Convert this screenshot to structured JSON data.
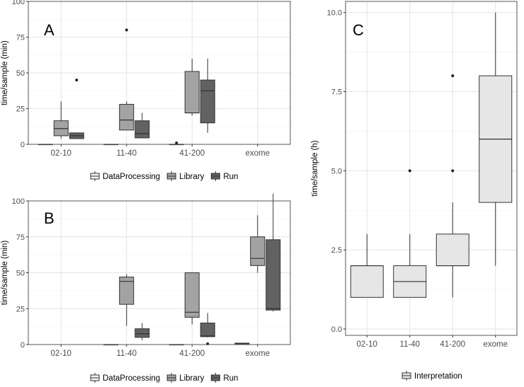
{
  "chart_data": [
    {
      "type": "box",
      "panel_label": "A",
      "ylabel": "time/sample (min)",
      "ylim": [
        0,
        100
      ],
      "yticks": [
        0,
        25,
        50,
        75,
        100
      ],
      "categories": [
        "02-10",
        "11-40",
        "41-200",
        "exome"
      ],
      "series": [
        {
          "name": "DataProcessing",
          "fill": "#f2f2f2",
          "boxes": [
            {
              "q1": 0,
              "median": 0,
              "q3": 0,
              "whisker_low": 0,
              "whisker_high": 0,
              "outliers": []
            },
            {
              "q1": 0,
              "median": 0,
              "q3": 0,
              "whisker_low": 0,
              "whisker_high": 0,
              "outliers": []
            },
            {
              "q1": 0,
              "median": 0,
              "q3": 0,
              "whisker_low": 0,
              "whisker_high": 0,
              "outliers": [
                1
              ]
            },
            null
          ]
        },
        {
          "name": "Library",
          "fill": "#a3a3a3",
          "boxes": [
            {
              "q1": 6,
              "median": 11,
              "q3": 16.5,
              "whisker_low": 4,
              "whisker_high": 30,
              "outliers": []
            },
            {
              "q1": 10,
              "median": 17,
              "q3": 28,
              "whisker_low": 10,
              "whisker_high": 30,
              "outliers": [
                80
              ]
            },
            {
              "q1": 22,
              "median": 22,
              "q3": 51,
              "whisker_low": 20,
              "whisker_high": 60,
              "outliers": []
            },
            null
          ]
        },
        {
          "name": "Run",
          "fill": "#626262",
          "boxes": [
            {
              "q1": 4,
              "median": 6,
              "q3": 8,
              "whisker_low": 4,
              "whisker_high": 8,
              "outliers": [
                45
              ]
            },
            {
              "q1": 4.5,
              "median": 7.5,
              "q3": 16.5,
              "whisker_low": 4.5,
              "whisker_high": 22,
              "outliers": []
            },
            {
              "q1": 15,
              "median": 37.5,
              "q3": 45,
              "whisker_low": 8,
              "whisker_high": 60,
              "outliers": []
            },
            null
          ]
        }
      ],
      "legend": {
        "position": "bottom"
      },
      "grid": true
    },
    {
      "type": "box",
      "panel_label": "B",
      "ylabel": "time/sample (min)",
      "ylim": [
        0,
        100
      ],
      "yticks": [
        0,
        25,
        50,
        75,
        100
      ],
      "categories": [
        "02-10",
        "11-40",
        "41-200",
        "exome"
      ],
      "series": [
        {
          "name": "DataProcessing",
          "fill": "#f2f2f2",
          "boxes": [
            null,
            {
              "q1": 0,
              "median": 0,
              "q3": 0,
              "whisker_low": 0,
              "whisker_high": 0,
              "outliers": []
            },
            {
              "q1": 0,
              "median": 0,
              "q3": 0,
              "whisker_low": 0,
              "whisker_high": 0,
              "outliers": []
            },
            {
              "q1": 0,
              "median": 0.5,
              "q3": 1,
              "whisker_low": 0,
              "whisker_high": 1,
              "outliers": []
            }
          ]
        },
        {
          "name": "Library",
          "fill": "#a3a3a3",
          "boxes": [
            null,
            {
              "q1": 28,
              "median": 44,
              "q3": 47,
              "whisker_low": 13,
              "whisker_high": 49,
              "outliers": []
            },
            {
              "q1": 19,
              "median": 22.5,
              "q3": 50,
              "whisker_low": 14,
              "whisker_high": 50,
              "outliers": []
            },
            {
              "q1": 55,
              "median": 60,
              "q3": 75,
              "whisker_low": 50,
              "whisker_high": 90,
              "outliers": []
            }
          ]
        },
        {
          "name": "Run",
          "fill": "#626262",
          "boxes": [
            null,
            {
              "q1": 5,
              "median": 7.5,
              "q3": 11,
              "whisker_low": 3,
              "whisker_high": 15,
              "outliers": []
            },
            {
              "q1": 5.5,
              "median": 6,
              "q3": 15,
              "whisker_low": 5,
              "whisker_high": 22,
              "outliers": [
                0.5
              ]
            },
            {
              "q1": 24,
              "median": 25,
              "q3": 73,
              "whisker_low": 23,
              "whisker_high": 105,
              "outliers": []
            }
          ]
        }
      ],
      "legend": {
        "position": "bottom"
      },
      "grid": true
    },
    {
      "type": "box",
      "panel_label": "C",
      "ylabel": "time/sample (h)",
      "ylim": [
        -0.2,
        10.35
      ],
      "yticks": [
        0.0,
        2.5,
        5.0,
        7.5,
        10.0
      ],
      "ytick_labels": [
        "0.0",
        "2.5",
        "5.0",
        "7.5",
        "10.0"
      ],
      "categories": [
        "02-10",
        "11-40",
        "41-200",
        "exome"
      ],
      "series": [
        {
          "name": "Interpretation",
          "fill": "#e6e6e6",
          "boxes": [
            {
              "q1": 1,
              "median": 2,
              "q3": 2,
              "whisker_low": 1,
              "whisker_high": 3,
              "outliers": []
            },
            {
              "q1": 1,
              "median": 1.5,
              "q3": 2,
              "whisker_low": 1,
              "whisker_high": 3,
              "outliers": [
                5
              ]
            },
            {
              "q1": 2,
              "median": 2,
              "q3": 3,
              "whisker_low": 1,
              "whisker_high": 4,
              "outliers": [
                5,
                8
              ]
            },
            {
              "q1": 4,
              "median": 6,
              "q3": 8,
              "whisker_low": 2,
              "whisker_high": 10,
              "outliers": []
            }
          ]
        }
      ],
      "legend": {
        "position": "bottom"
      },
      "grid": true
    }
  ]
}
